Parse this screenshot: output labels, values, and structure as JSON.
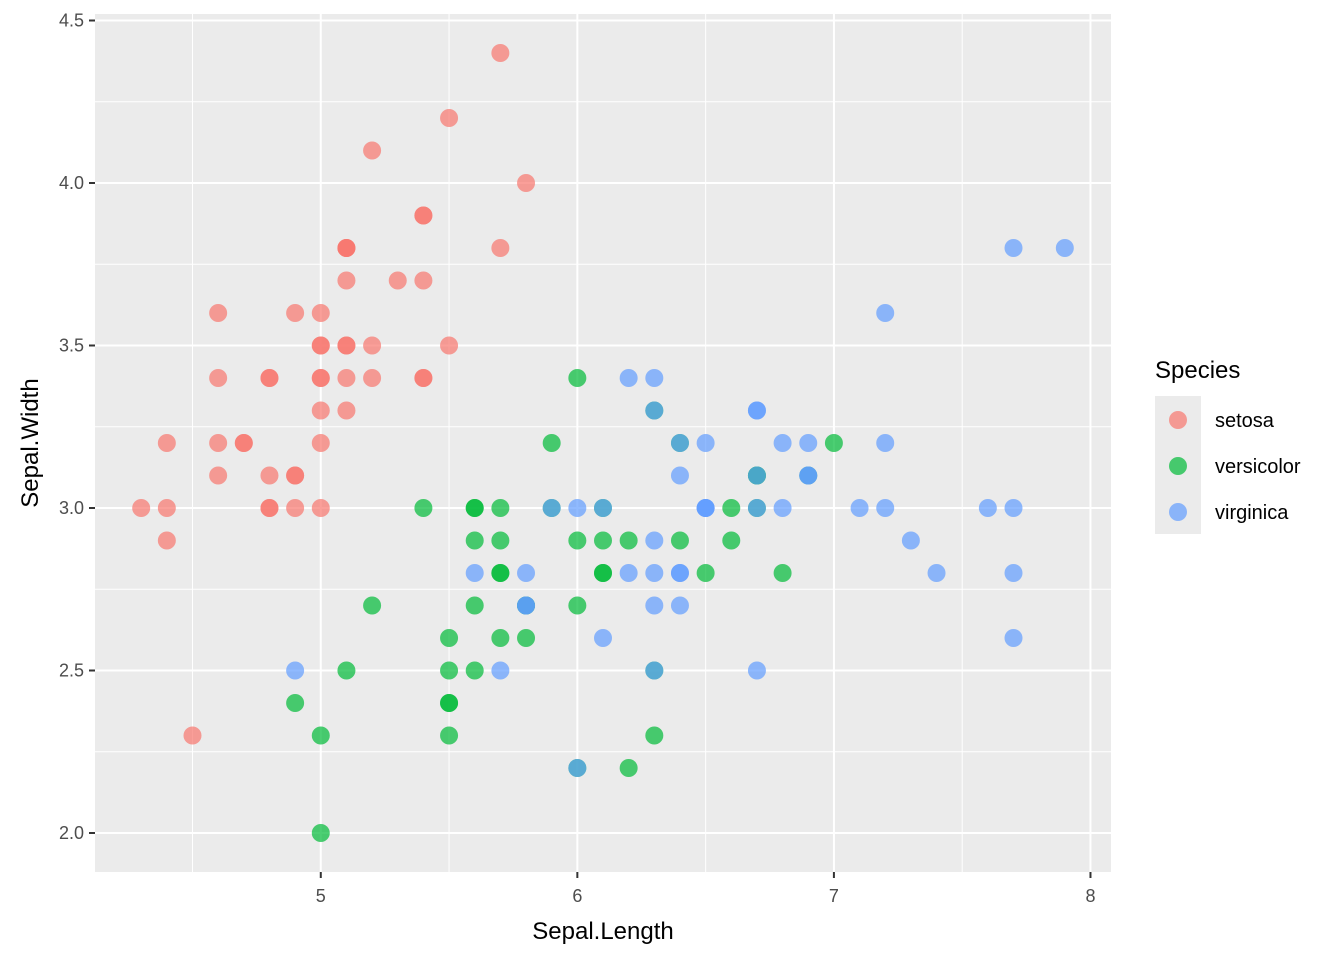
{
  "chart_data": {
    "type": "scatter",
    "xlabel": "Sepal.Length",
    "ylabel": "Sepal.Width",
    "xlim": [
      4.12,
      8.08
    ],
    "ylim": [
      1.88,
      4.52
    ],
    "x_ticks": [
      5,
      6,
      7,
      8
    ],
    "x_tick_labels": [
      "5",
      "6",
      "7",
      "8"
    ],
    "y_ticks": [
      2.0,
      2.5,
      3.0,
      3.5,
      4.0,
      4.5
    ],
    "y_tick_labels": [
      "2.0",
      "2.5",
      "3.0",
      "3.5",
      "4.0",
      "4.5"
    ],
    "grid": true,
    "legend": {
      "title": "Species",
      "position": "right"
    },
    "series": [
      {
        "name": "setosa",
        "color": "#F8766D",
        "points": [
          [
            5.1,
            3.5
          ],
          [
            4.9,
            3.0
          ],
          [
            4.7,
            3.2
          ],
          [
            4.6,
            3.1
          ],
          [
            5.0,
            3.6
          ],
          [
            5.4,
            3.9
          ],
          [
            4.6,
            3.4
          ],
          [
            5.0,
            3.4
          ],
          [
            4.4,
            2.9
          ],
          [
            4.9,
            3.1
          ],
          [
            5.4,
            3.7
          ],
          [
            4.8,
            3.4
          ],
          [
            4.8,
            3.0
          ],
          [
            4.3,
            3.0
          ],
          [
            5.8,
            4.0
          ],
          [
            5.7,
            4.4
          ],
          [
            5.4,
            3.9
          ],
          [
            5.1,
            3.5
          ],
          [
            5.7,
            3.8
          ],
          [
            5.1,
            3.8
          ],
          [
            5.4,
            3.4
          ],
          [
            5.1,
            3.7
          ],
          [
            4.6,
            3.6
          ],
          [
            5.1,
            3.3
          ],
          [
            4.8,
            3.4
          ],
          [
            5.0,
            3.0
          ],
          [
            5.0,
            3.4
          ],
          [
            5.2,
            3.5
          ],
          [
            5.2,
            3.4
          ],
          [
            4.7,
            3.2
          ],
          [
            4.8,
            3.1
          ],
          [
            5.4,
            3.4
          ],
          [
            5.2,
            4.1
          ],
          [
            5.5,
            4.2
          ],
          [
            4.9,
            3.1
          ],
          [
            5.0,
            3.2
          ],
          [
            5.5,
            3.5
          ],
          [
            4.9,
            3.6
          ],
          [
            4.4,
            3.0
          ],
          [
            5.1,
            3.4
          ],
          [
            5.0,
            3.5
          ],
          [
            4.5,
            2.3
          ],
          [
            4.4,
            3.2
          ],
          [
            5.0,
            3.5
          ],
          [
            5.1,
            3.8
          ],
          [
            4.8,
            3.0
          ],
          [
            5.1,
            3.8
          ],
          [
            4.6,
            3.2
          ],
          [
            5.3,
            3.7
          ],
          [
            5.0,
            3.3
          ]
        ]
      },
      {
        "name": "versicolor",
        "color": "#00BA38",
        "points": [
          [
            7.0,
            3.2
          ],
          [
            6.4,
            3.2
          ],
          [
            6.9,
            3.1
          ],
          [
            5.5,
            2.3
          ],
          [
            6.5,
            2.8
          ],
          [
            5.7,
            2.8
          ],
          [
            6.3,
            3.3
          ],
          [
            4.9,
            2.4
          ],
          [
            6.6,
            2.9
          ],
          [
            5.2,
            2.7
          ],
          [
            5.0,
            2.0
          ],
          [
            5.9,
            3.0
          ],
          [
            6.0,
            2.2
          ],
          [
            6.1,
            2.9
          ],
          [
            5.6,
            2.9
          ],
          [
            6.7,
            3.1
          ],
          [
            5.6,
            3.0
          ],
          [
            5.8,
            2.7
          ],
          [
            6.2,
            2.2
          ],
          [
            5.6,
            2.5
          ],
          [
            5.9,
            3.2
          ],
          [
            6.1,
            2.8
          ],
          [
            6.3,
            2.5
          ],
          [
            6.1,
            2.8
          ],
          [
            6.4,
            2.9
          ],
          [
            6.6,
            3.0
          ],
          [
            6.8,
            2.8
          ],
          [
            6.7,
            3.0
          ],
          [
            6.0,
            2.9
          ],
          [
            5.7,
            2.6
          ],
          [
            5.5,
            2.4
          ],
          [
            5.5,
            2.4
          ],
          [
            5.8,
            2.7
          ],
          [
            6.0,
            2.7
          ],
          [
            5.4,
            3.0
          ],
          [
            6.0,
            3.4
          ],
          [
            6.7,
            3.1
          ],
          [
            6.3,
            2.3
          ],
          [
            5.6,
            3.0
          ],
          [
            5.5,
            2.5
          ],
          [
            5.5,
            2.6
          ],
          [
            6.1,
            3.0
          ],
          [
            5.8,
            2.6
          ],
          [
            5.0,
            2.3
          ],
          [
            5.6,
            2.7
          ],
          [
            5.7,
            3.0
          ],
          [
            5.7,
            2.9
          ],
          [
            6.2,
            2.9
          ],
          [
            5.1,
            2.5
          ],
          [
            5.7,
            2.8
          ]
        ]
      },
      {
        "name": "virginica",
        "color": "#619CFF",
        "points": [
          [
            6.3,
            3.3
          ],
          [
            5.8,
            2.7
          ],
          [
            7.1,
            3.0
          ],
          [
            6.3,
            2.9
          ],
          [
            6.5,
            3.0
          ],
          [
            7.6,
            3.0
          ],
          [
            4.9,
            2.5
          ],
          [
            7.3,
            2.9
          ],
          [
            6.7,
            2.5
          ],
          [
            7.2,
            3.6
          ],
          [
            6.5,
            3.2
          ],
          [
            6.4,
            2.7
          ],
          [
            6.8,
            3.0
          ],
          [
            5.7,
            2.5
          ],
          [
            5.8,
            2.8
          ],
          [
            6.4,
            3.2
          ],
          [
            6.5,
            3.0
          ],
          [
            7.7,
            3.8
          ],
          [
            7.7,
            2.6
          ],
          [
            6.0,
            2.2
          ],
          [
            6.9,
            3.2
          ],
          [
            5.6,
            2.8
          ],
          [
            7.7,
            2.8
          ],
          [
            6.3,
            2.7
          ],
          [
            6.7,
            3.3
          ],
          [
            7.2,
            3.2
          ],
          [
            6.2,
            2.8
          ],
          [
            6.1,
            3.0
          ],
          [
            6.4,
            2.8
          ],
          [
            7.2,
            3.0
          ],
          [
            7.4,
            2.8
          ],
          [
            7.9,
            3.8
          ],
          [
            6.4,
            2.8
          ],
          [
            6.3,
            2.8
          ],
          [
            6.1,
            2.6
          ],
          [
            7.7,
            3.0
          ],
          [
            6.3,
            3.4
          ],
          [
            6.4,
            3.1
          ],
          [
            6.0,
            3.0
          ],
          [
            6.9,
            3.1
          ],
          [
            6.7,
            3.1
          ],
          [
            6.9,
            3.1
          ],
          [
            5.8,
            2.7
          ],
          [
            6.8,
            3.2
          ],
          [
            6.7,
            3.3
          ],
          [
            6.7,
            3.0
          ],
          [
            6.3,
            2.5
          ],
          [
            6.5,
            3.0
          ],
          [
            6.2,
            3.4
          ],
          [
            5.9,
            3.0
          ]
        ]
      }
    ]
  }
}
